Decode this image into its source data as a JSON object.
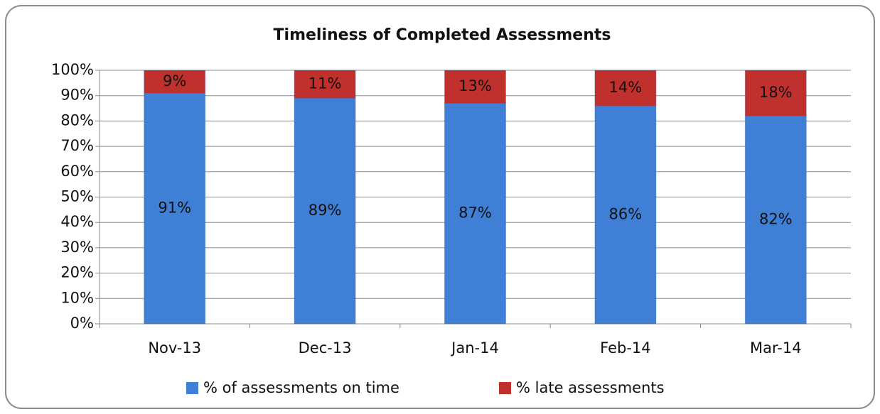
{
  "chart_data": {
    "type": "stacked_bar",
    "title": "Timeliness of Completed Assessments",
    "categories": [
      "Nov-13",
      "Dec-13",
      "Jan-14",
      "Feb-14",
      "Mar-14"
    ],
    "series": [
      {
        "name": "% of assessments on time",
        "color": "#3f7fd6",
        "values": [
          91,
          89,
          87,
          86,
          82
        ],
        "value_labels": [
          "91%",
          "89%",
          "87%",
          "86%",
          "82%"
        ]
      },
      {
        "name": "% late assessments",
        "color": "#c0302c",
        "values": [
          9,
          11,
          13,
          14,
          18
        ],
        "value_labels": [
          "9%",
          "11%",
          "13%",
          "14%",
          "18%"
        ]
      }
    ],
    "ylim": [
      0,
      100
    ],
    "yticks": [
      {
        "value": 0,
        "label": "0%"
      },
      {
        "value": 10,
        "label": "10%"
      },
      {
        "value": 20,
        "label": "20%"
      },
      {
        "value": 30,
        "label": "30%"
      },
      {
        "value": 40,
        "label": "40%"
      },
      {
        "value": 50,
        "label": "50%"
      },
      {
        "value": 60,
        "label": "60%"
      },
      {
        "value": 70,
        "label": "70%"
      },
      {
        "value": 80,
        "label": "80%"
      },
      {
        "value": 90,
        "label": "90%"
      },
      {
        "value": 100,
        "label": "100%"
      }
    ],
    "grid": true,
    "legend": "bottom"
  }
}
